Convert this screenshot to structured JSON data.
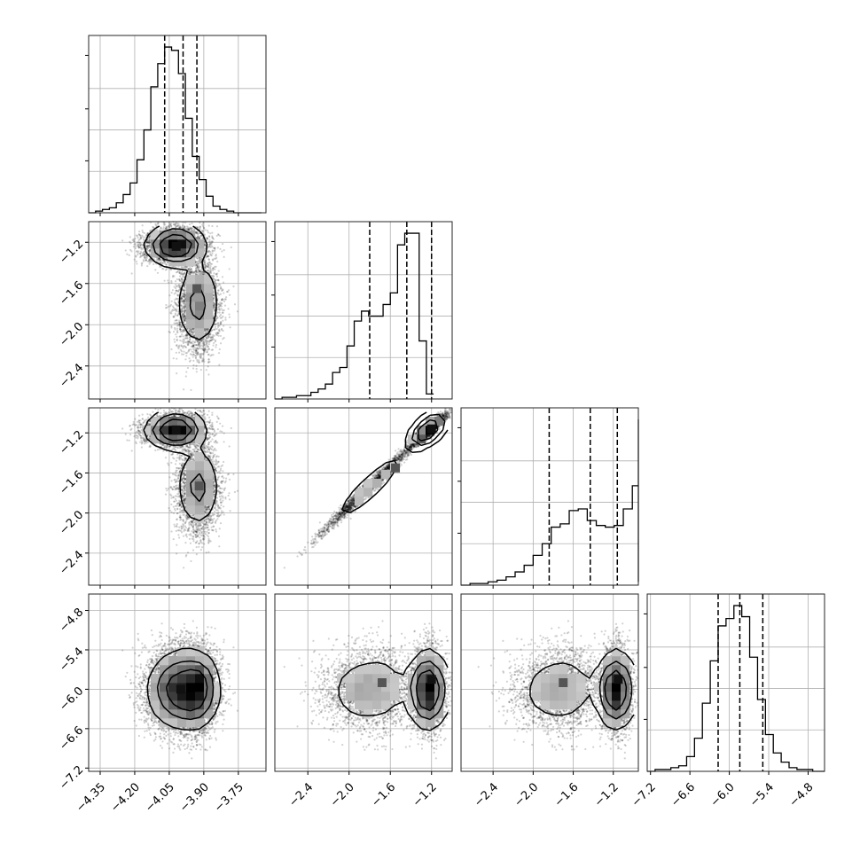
{
  "chart_data": {
    "type": "corner",
    "title": "",
    "parameters": [
      {
        "index": 0,
        "range": [
          -4.4,
          -3.63
        ],
        "ticks": [
          -4.35,
          -4.2,
          -4.05,
          -3.9,
          -3.75
        ],
        "tick_labels": [
          "−4.35",
          "−4.20",
          "−4.05",
          "−3.90",
          "−3.75"
        ],
        "quantiles": [
          -4.07,
          -3.99,
          -3.93
        ]
      },
      {
        "index": 1,
        "range": [
          -2.72,
          -1.0
        ],
        "ticks": [
          -2.4,
          -2.0,
          -1.6,
          -1.2
        ],
        "tick_labels": [
          "−2.4",
          "−2.0",
          "−1.6",
          "−1.2"
        ],
        "quantiles": [
          -1.8,
          -1.44,
          -1.2
        ]
      },
      {
        "index": 2,
        "range": [
          -2.72,
          -0.95
        ],
        "ticks": [
          -2.4,
          -2.0,
          -1.6,
          -1.2
        ],
        "tick_labels": [
          "−2.4",
          "−2.0",
          "−1.6",
          "−1.2"
        ],
        "quantiles": [
          -1.84,
          -1.43,
          -1.16
        ]
      },
      {
        "index": 3,
        "range": [
          -7.25,
          -4.55
        ],
        "ticks": [
          -7.2,
          -6.6,
          -6.0,
          -5.4,
          -4.8
        ],
        "tick_labels": [
          "−7.2",
          "−6.6",
          "−6.0",
          "−5.4",
          "−4.8"
        ],
        "quantiles": [
          -6.17,
          -5.84,
          -5.49
        ]
      }
    ],
    "histograms": [
      {
        "param": 0,
        "bin_edges_start": -4.4,
        "bin_width": 0.03,
        "counts": [
          0,
          1,
          2,
          3,
          6,
          11,
          18,
          32,
          50,
          76,
          90,
          100,
          98,
          84,
          57,
          34,
          20,
          10,
          4,
          2,
          1,
          0,
          0,
          0,
          0
        ]
      },
      {
        "param": 1,
        "bin_edges_start": -2.72,
        "bin_width": 0.07,
        "counts": [
          0,
          1,
          1,
          2,
          2,
          4,
          6,
          9,
          16,
          19,
          32,
          47,
          53,
          50,
          50,
          57,
          64,
          93,
          100,
          100,
          35,
          3
        ]
      },
      {
        "param": 2,
        "bin_edges_start": -2.72,
        "bin_width": 0.09,
        "counts": [
          0,
          1,
          1,
          2,
          3,
          5,
          8,
          12,
          18,
          25,
          35,
          37,
          45,
          46,
          39,
          36,
          35,
          36,
          46,
          60,
          100,
          42,
          2
        ]
      },
      {
        "param": 3,
        "bin_edges_start": -7.25,
        "bin_width": 0.12,
        "counts": [
          0,
          1,
          1,
          2,
          3,
          8,
          18,
          37,
          60,
          79,
          83,
          90,
          84,
          62,
          39,
          20,
          10,
          5,
          2,
          1,
          1,
          0,
          0
        ]
      }
    ],
    "joint_modes": [
      {
        "x_param": 0,
        "y_param": 1,
        "modes": [
          {
            "x": -4.02,
            "y": -1.24
          },
          {
            "x": -3.93,
            "y": -1.65
          }
        ]
      },
      {
        "x_param": 0,
        "y_param": 2,
        "modes": [
          {
            "x": -4.02,
            "y": -1.17
          },
          {
            "x": -3.92,
            "y": -1.73
          }
        ]
      },
      {
        "x_param": 0,
        "y_param": 3,
        "modes": [
          {
            "x": -4.0,
            "y": -6.0
          }
        ]
      },
      {
        "x_param": 1,
        "y_param": 2,
        "modes": [
          {
            "x": -1.2,
            "y": -1.16
          },
          {
            "x": -1.55,
            "y": -1.55
          }
        ]
      },
      {
        "x_param": 1,
        "y_param": 3,
        "modes": [
          {
            "x": -1.2,
            "y": -5.85
          },
          {
            "x": -1.68,
            "y": -5.9
          }
        ]
      },
      {
        "x_param": 2,
        "y_param": 3,
        "modes": [
          {
            "x": -1.15,
            "y": -5.85
          },
          {
            "x": -1.7,
            "y": -5.9
          }
        ]
      }
    ],
    "grid": true,
    "legend": "none"
  }
}
